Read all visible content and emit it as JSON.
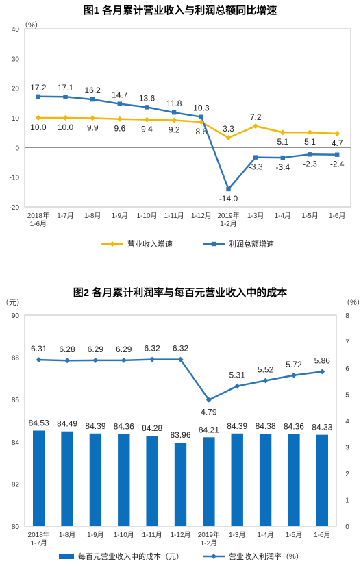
{
  "colors": {
    "revenue_line": "#F2B705",
    "profit_line": "#2E75B6",
    "cost_bar": "#0B6FBE",
    "margin_line": "#2E75B6",
    "axis": "#808080",
    "frame": "#bfbfbf"
  },
  "chart_data": [
    {
      "type": "line",
      "title": "图1  各月累计营业收入与利润总额同比增速",
      "y_unit": "（%）",
      "ylim": [
        -20,
        40
      ],
      "yticks": [
        "40",
        "30",
        "20",
        "10",
        "0",
        "-10",
        "-20"
      ],
      "categories": [
        [
          "2018年",
          "1-6月"
        ],
        [
          "1-7月"
        ],
        [
          "1-8月"
        ],
        [
          "1-9月"
        ],
        [
          "1-10月"
        ],
        [
          "1-11月"
        ],
        [
          "1-12月"
        ],
        [
          "2019年",
          "1-2月"
        ],
        [
          "1-3月"
        ],
        [
          "1-4月"
        ],
        [
          "1-5月"
        ],
        [
          "1-6月"
        ]
      ],
      "series": [
        {
          "name": "营业收入增速",
          "values": [
            10.0,
            10.0,
            9.9,
            9.6,
            9.4,
            9.2,
            8.6,
            3.3,
            7.2,
            5.1,
            5.1,
            4.7
          ],
          "labels": [
            "10.0",
            "10.0",
            "9.9",
            "9.6",
            "9.4",
            "9.2",
            "8.6",
            "3.3",
            "7.2",
            "5.1",
            "5.1",
            "4.7"
          ],
          "marker": "diamond"
        },
        {
          "name": "利润总额增速",
          "values": [
            17.2,
            17.1,
            16.2,
            14.7,
            13.6,
            11.8,
            10.3,
            -14.0,
            -3.3,
            -3.4,
            -2.3,
            -2.4
          ],
          "labels": [
            "17.2",
            "17.1",
            "16.2",
            "14.7",
            "13.6",
            "11.8",
            "10.3",
            "-14.0",
            "-3.3",
            "-3.4",
            "-2.3",
            "-2.4"
          ],
          "marker": "square"
        }
      ],
      "legend_position": "bottom"
    },
    {
      "type": "bar+line",
      "title": "图2  各月累计利润率与每百元营业收入中的成本",
      "y_left_unit": "（元）",
      "y_right_unit": "（%）",
      "ylim_left": [
        80,
        90
      ],
      "ylim_right": [
        0,
        8
      ],
      "yticks_left": [
        "90",
        "88",
        "86",
        "84",
        "82",
        "80"
      ],
      "yticks_right": [
        "8",
        "7",
        "6",
        "5",
        "4",
        "3",
        "2",
        "1",
        "0"
      ],
      "categories": [
        [
          "2018年",
          "1-7月"
        ],
        [
          "1-8月"
        ],
        [
          "1-9月"
        ],
        [
          "1-10月"
        ],
        [
          "1-11月"
        ],
        [
          "1-12月"
        ],
        [
          "2019年",
          "1-2月"
        ],
        [
          "1-3月"
        ],
        [
          "1-4月"
        ],
        [
          "1-5月"
        ],
        [
          "1-6月"
        ]
      ],
      "series": [
        {
          "name": "每百元营业收入中的成本（元）",
          "axis": "left",
          "kind": "bar",
          "values": [
            84.53,
            84.49,
            84.39,
            84.36,
            84.28,
            83.96,
            84.21,
            84.39,
            84.38,
            84.36,
            84.33
          ],
          "labels": [
            "84.53",
            "84.49",
            "84.39",
            "84.36",
            "84.28",
            "83.96",
            "84.21",
            "84.39",
            "84.38",
            "84.36",
            "84.33"
          ]
        },
        {
          "name": "营业收入利润率（%）",
          "axis": "right",
          "kind": "line",
          "values": [
            6.31,
            6.28,
            6.29,
            6.29,
            6.32,
            6.32,
            4.79,
            5.31,
            5.52,
            5.72,
            5.86
          ],
          "labels": [
            "6.31",
            "6.28",
            "6.29",
            "6.29",
            "6.32",
            "6.32",
            "4.79",
            "5.31",
            "5.52",
            "5.72",
            "5.86"
          ],
          "marker": "diamond"
        }
      ],
      "legend_position": "bottom"
    }
  ]
}
